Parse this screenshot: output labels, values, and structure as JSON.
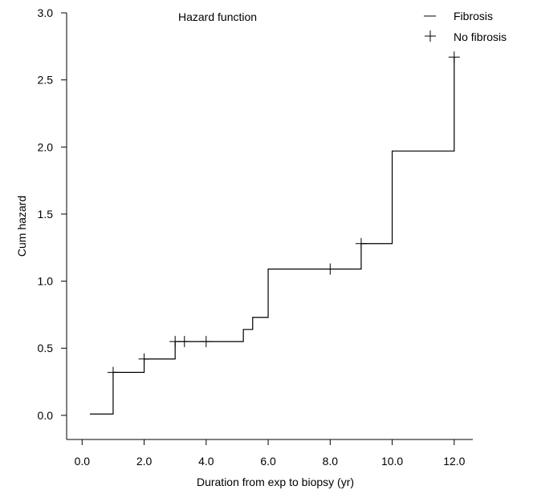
{
  "chart_data": {
    "type": "line",
    "title": "Hazard function",
    "xlabel": "Duration from exp to biopsy (yr)",
    "ylabel": "Cum hazard",
    "xlim": [
      -0.5,
      12.6
    ],
    "ylim": [
      -0.18,
      3.0
    ],
    "x_ticks": [
      0,
      2,
      4,
      6,
      8,
      10,
      12
    ],
    "x_tick_labels": [
      "0.0",
      "2.0",
      "4.0",
      "6.0",
      "8.0",
      "10.0",
      "12.0"
    ],
    "y_ticks": [
      0,
      0.5,
      1.0,
      1.5,
      2.0,
      2.5,
      3.0
    ],
    "y_tick_labels": [
      "0.0",
      "0.5",
      "1.0",
      "1.5",
      "2.0",
      "2.5",
      "3.0"
    ],
    "grid": false,
    "legend_position": "top-right",
    "legend": [
      {
        "label": "Fibrosis",
        "symbol": "line"
      },
      {
        "label": "No fibrosis",
        "symbol": "plus"
      }
    ],
    "series": [
      {
        "name": "Fibrosis",
        "style": "step",
        "x": [
          0.25,
          1.0,
          2.0,
          3.0,
          5.2,
          5.5,
          6.0,
          9.0,
          10.0,
          12.0
        ],
        "y": [
          0.01,
          0.32,
          0.42,
          0.55,
          0.64,
          0.73,
          1.09,
          1.28,
          1.97,
          2.67
        ]
      },
      {
        "name": "No fibrosis",
        "style": "markers",
        "x": [
          1.0,
          2.0,
          3.0,
          3.3,
          4.0,
          8.0,
          9.0,
          12.0
        ],
        "y": [
          0.32,
          0.42,
          0.55,
          0.55,
          0.55,
          1.09,
          1.28,
          2.67
        ]
      }
    ]
  },
  "colors": {
    "line": "#000000",
    "background": "#ffffff"
  }
}
